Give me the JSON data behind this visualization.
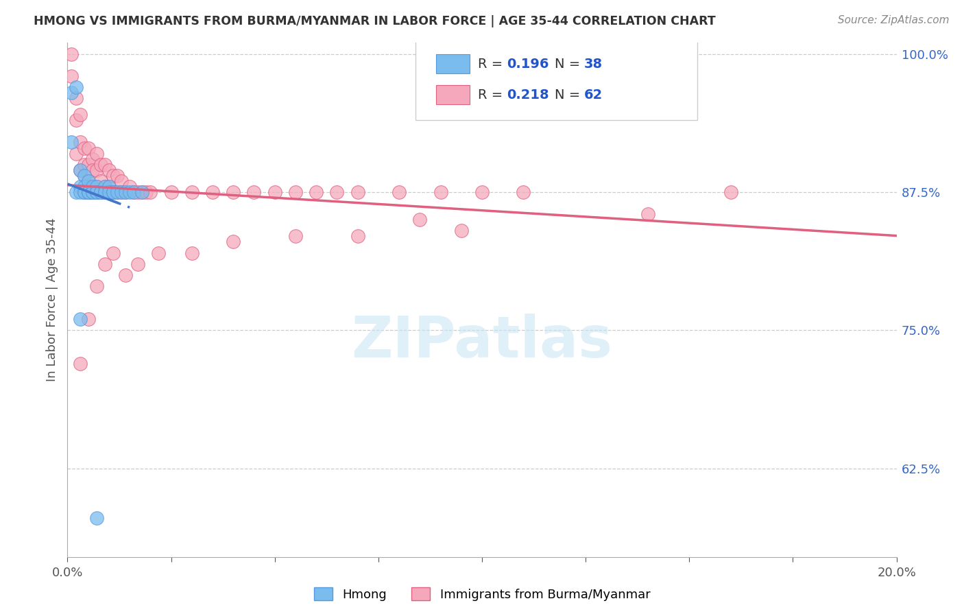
{
  "title": "HMONG VS IMMIGRANTS FROM BURMA/MYANMAR IN LABOR FORCE | AGE 35-44 CORRELATION CHART",
  "source": "Source: ZipAtlas.com",
  "ylabel": "In Labor Force | Age 35-44",
  "xlim": [
    0.0,
    0.2
  ],
  "ylim": [
    0.545,
    1.01
  ],
  "xticks": [
    0.0,
    0.025,
    0.05,
    0.075,
    0.1,
    0.125,
    0.15,
    0.175,
    0.2
  ],
  "xticklabels_show": [
    "0.0%",
    "20.0%"
  ],
  "yticks_right": [
    0.625,
    0.75,
    0.875,
    1.0
  ],
  "ytick_right_labels": [
    "62.5%",
    "75.0%",
    "87.5%",
    "100.0%"
  ],
  "hmong_R": 0.196,
  "hmong_N": 38,
  "burma_R": 0.218,
  "burma_N": 62,
  "hmong_color": "#7bbcee",
  "burma_color": "#f5a8bc",
  "hmong_edge_color": "#5599dd",
  "burma_edge_color": "#e06080",
  "hmong_trendline_color": "#4477cc",
  "burma_trendline_color": "#e06080",
  "background_color": "#ffffff",
  "hmong_x": [
    0.001,
    0.001,
    0.002,
    0.002,
    0.003,
    0.003,
    0.003,
    0.004,
    0.004,
    0.004,
    0.004,
    0.005,
    0.005,
    0.005,
    0.005,
    0.006,
    0.006,
    0.006,
    0.007,
    0.007,
    0.007,
    0.008,
    0.008,
    0.009,
    0.009,
    0.009,
    0.01,
    0.01,
    0.011,
    0.011,
    0.012,
    0.013,
    0.014,
    0.015,
    0.016,
    0.018,
    0.003,
    0.007
  ],
  "hmong_y": [
    0.965,
    0.92,
    0.97,
    0.875,
    0.895,
    0.88,
    0.875,
    0.89,
    0.88,
    0.875,
    0.875,
    0.885,
    0.875,
    0.875,
    0.875,
    0.88,
    0.875,
    0.875,
    0.88,
    0.875,
    0.875,
    0.875,
    0.875,
    0.88,
    0.875,
    0.875,
    0.88,
    0.875,
    0.875,
    0.875,
    0.875,
    0.875,
    0.875,
    0.875,
    0.875,
    0.875,
    0.76,
    0.58
  ],
  "burma_x": [
    0.001,
    0.001,
    0.002,
    0.002,
    0.002,
    0.003,
    0.003,
    0.003,
    0.004,
    0.004,
    0.004,
    0.004,
    0.005,
    0.005,
    0.005,
    0.005,
    0.006,
    0.006,
    0.006,
    0.006,
    0.007,
    0.007,
    0.007,
    0.007,
    0.008,
    0.008,
    0.008,
    0.009,
    0.009,
    0.009,
    0.01,
    0.01,
    0.01,
    0.011,
    0.011,
    0.012,
    0.012,
    0.013,
    0.013,
    0.014,
    0.015,
    0.016,
    0.017,
    0.018,
    0.019,
    0.02,
    0.025,
    0.03,
    0.035,
    0.04,
    0.045,
    0.05,
    0.055,
    0.06,
    0.065,
    0.07,
    0.08,
    0.09,
    0.1,
    0.11,
    0.14,
    0.16
  ],
  "burma_y": [
    1.0,
    0.98,
    0.96,
    0.94,
    0.91,
    0.945,
    0.92,
    0.895,
    0.915,
    0.9,
    0.89,
    0.875,
    0.915,
    0.9,
    0.885,
    0.875,
    0.905,
    0.895,
    0.88,
    0.875,
    0.91,
    0.895,
    0.88,
    0.875,
    0.9,
    0.885,
    0.875,
    0.9,
    0.88,
    0.875,
    0.895,
    0.88,
    0.875,
    0.89,
    0.875,
    0.89,
    0.875,
    0.885,
    0.875,
    0.875,
    0.88,
    0.875,
    0.875,
    0.875,
    0.875,
    0.875,
    0.875,
    0.875,
    0.875,
    0.875,
    0.875,
    0.875,
    0.875,
    0.875,
    0.875,
    0.875,
    0.875,
    0.875,
    0.875,
    0.875,
    0.855,
    0.875
  ],
  "burma_outliers_x": [
    0.003,
    0.005,
    0.007,
    0.009,
    0.011,
    0.014,
    0.017,
    0.022,
    0.03,
    0.04,
    0.055,
    0.07,
    0.085,
    0.095
  ],
  "burma_outliers_y": [
    0.72,
    0.76,
    0.79,
    0.81,
    0.82,
    0.8,
    0.81,
    0.82,
    0.82,
    0.83,
    0.835,
    0.835,
    0.85,
    0.84
  ]
}
